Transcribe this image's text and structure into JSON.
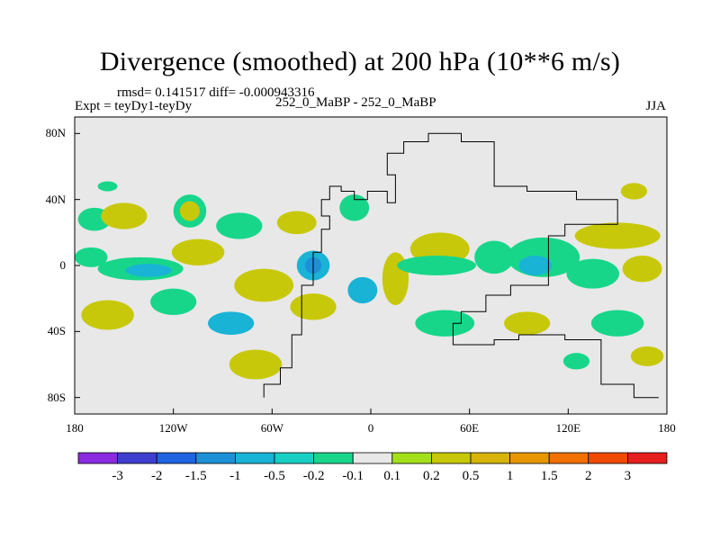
{
  "chart_data": {
    "type": "heatmap",
    "title": "Divergence (smoothed) at 200 hPa (10**6 m/s)",
    "stats": "rmsd= 0.141517 diff= -0.000943316",
    "left_label": "Expt = teyDy1-teyDy",
    "center_label": "252_0_MaBP - 252_0_MaBP",
    "right_label": "JJA",
    "x_range": [
      -180,
      180
    ],
    "y_range": [
      -90,
      90
    ],
    "x_ticks": [
      {
        "value": -180,
        "label": "180"
      },
      {
        "value": -120,
        "label": "120W"
      },
      {
        "value": -60,
        "label": "60W"
      },
      {
        "value": 0,
        "label": "0"
      },
      {
        "value": 60,
        "label": "60E"
      },
      {
        "value": 120,
        "label": "120E"
      },
      {
        "value": 180,
        "label": "180"
      }
    ],
    "y_ticks": [
      {
        "value": 80,
        "label": "80N"
      },
      {
        "value": 40,
        "label": "40N"
      },
      {
        "value": 0,
        "label": "0"
      },
      {
        "value": -40,
        "label": "40S"
      },
      {
        "value": -80,
        "label": "80S"
      }
    ],
    "colorbar": {
      "colors": [
        "#8a2be2",
        "#3f3fcf",
        "#1f63e0",
        "#1e90d8",
        "#19b3d6",
        "#17cfc3",
        "#17d68a",
        "#e8e8e8",
        "#a3e01a",
        "#c8c80a",
        "#d6b40a",
        "#e79600",
        "#f07000",
        "#ef4a00",
        "#e51e1e"
      ],
      "labels": [
        "-3",
        "-2",
        "-1.5",
        "-1",
        "-0.5",
        "-0.2",
        "-0.1",
        "0.1",
        "0.2",
        "0.5",
        "1",
        "1.5",
        "2",
        "3"
      ]
    },
    "blobs": [
      {
        "lon": -168,
        "lat": 28,
        "rx": 10,
        "ry": 7,
        "color": "#17d68a"
      },
      {
        "lon": -150,
        "lat": 30,
        "rx": 14,
        "ry": 8,
        "color": "#c8c80a"
      },
      {
        "lon": -110,
        "lat": 33,
        "rx": 10,
        "ry": 10,
        "color": "#17d68a"
      },
      {
        "lon": -110,
        "lat": 33,
        "rx": 6,
        "ry": 6,
        "color": "#c8c80a"
      },
      {
        "lon": -80,
        "lat": 24,
        "rx": 14,
        "ry": 8,
        "color": "#17d68a"
      },
      {
        "lon": -45,
        "lat": 26,
        "rx": 12,
        "ry": 7,
        "color": "#c8c80a"
      },
      {
        "lon": -10,
        "lat": 35,
        "rx": 9,
        "ry": 8,
        "color": "#17d68a"
      },
      {
        "lon": -170,
        "lat": 5,
        "rx": 10,
        "ry": 6,
        "color": "#17d68a"
      },
      {
        "lon": -140,
        "lat": -2,
        "rx": 26,
        "ry": 7,
        "color": "#17d68a"
      },
      {
        "lon": -135,
        "lat": -3,
        "rx": 14,
        "ry": 4,
        "color": "#19b3d6"
      },
      {
        "lon": -105,
        "lat": 8,
        "rx": 16,
        "ry": 8,
        "color": "#c8c80a"
      },
      {
        "lon": -65,
        "lat": -12,
        "rx": 18,
        "ry": 10,
        "color": "#c8c80a"
      },
      {
        "lon": -35,
        "lat": 0,
        "rx": 10,
        "ry": 9,
        "color": "#19b3d6"
      },
      {
        "lon": -35,
        "lat": 0,
        "rx": 5,
        "ry": 5,
        "color": "#1e90d8"
      },
      {
        "lon": -5,
        "lat": -15,
        "rx": 9,
        "ry": 8,
        "color": "#19b3d6"
      },
      {
        "lon": 15,
        "lat": -8,
        "rx": 8,
        "ry": 16,
        "color": "#c8c80a"
      },
      {
        "lon": 42,
        "lat": 10,
        "rx": 18,
        "ry": 10,
        "color": "#c8c80a"
      },
      {
        "lon": 40,
        "lat": 0,
        "rx": 24,
        "ry": 6,
        "color": "#17d68a"
      },
      {
        "lon": 75,
        "lat": 5,
        "rx": 12,
        "ry": 10,
        "color": "#17d68a"
      },
      {
        "lon": 105,
        "lat": 5,
        "rx": 22,
        "ry": 12,
        "color": "#17d68a"
      },
      {
        "lon": 100,
        "lat": 0,
        "rx": 10,
        "ry": 6,
        "color": "#19b3d6"
      },
      {
        "lon": 150,
        "lat": 18,
        "rx": 26,
        "ry": 8,
        "color": "#c8c80a"
      },
      {
        "lon": 135,
        "lat": -5,
        "rx": 16,
        "ry": 9,
        "color": "#17d68a"
      },
      {
        "lon": 165,
        "lat": -2,
        "rx": 12,
        "ry": 8,
        "color": "#c8c80a"
      },
      {
        "lon": -160,
        "lat": -30,
        "rx": 16,
        "ry": 9,
        "color": "#c8c80a"
      },
      {
        "lon": -120,
        "lat": -22,
        "rx": 14,
        "ry": 8,
        "color": "#17d68a"
      },
      {
        "lon": -85,
        "lat": -35,
        "rx": 14,
        "ry": 7,
        "color": "#19b3d6"
      },
      {
        "lon": -70,
        "lat": -60,
        "rx": 16,
        "ry": 9,
        "color": "#c8c80a"
      },
      {
        "lon": -35,
        "lat": -25,
        "rx": 14,
        "ry": 8,
        "color": "#c8c80a"
      },
      {
        "lon": 45,
        "lat": -35,
        "rx": 18,
        "ry": 8,
        "color": "#17d68a"
      },
      {
        "lon": 95,
        "lat": -35,
        "rx": 14,
        "ry": 7,
        "color": "#c8c80a"
      },
      {
        "lon": 150,
        "lat": -35,
        "rx": 16,
        "ry": 8,
        "color": "#17d68a"
      },
      {
        "lon": 125,
        "lat": -58,
        "rx": 8,
        "ry": 5,
        "color": "#17d68a"
      },
      {
        "lon": 168,
        "lat": -55,
        "rx": 10,
        "ry": 6,
        "color": "#c8c80a"
      },
      {
        "lon": 160,
        "lat": 45,
        "rx": 8,
        "ry": 5,
        "color": "#c8c80a"
      },
      {
        "lon": -160,
        "lat": 48,
        "rx": 6,
        "ry": 3,
        "color": "#17d68a"
      }
    ],
    "outline_lonlat": [
      [
        -65,
        -80
      ],
      [
        -65,
        -72
      ],
      [
        -55,
        -72
      ],
      [
        -55,
        -62
      ],
      [
        -48,
        -62
      ],
      [
        -48,
        -42
      ],
      [
        -42,
        -42
      ],
      [
        -42,
        -12
      ],
      [
        -35,
        -12
      ],
      [
        -35,
        8
      ],
      [
        -30,
        8
      ],
      [
        -30,
        22
      ],
      [
        -25,
        22
      ],
      [
        -25,
        30
      ],
      [
        -30,
        30
      ],
      [
        -30,
        40
      ],
      [
        -25,
        40
      ],
      [
        -25,
        48
      ],
      [
        -18,
        48
      ],
      [
        -18,
        45
      ],
      [
        -10,
        45
      ],
      [
        -10,
        40
      ],
      [
        -2,
        40
      ],
      [
        -2,
        45
      ],
      [
        10,
        45
      ],
      [
        10,
        38
      ],
      [
        15,
        38
      ],
      [
        15,
        55
      ],
      [
        10,
        55
      ],
      [
        10,
        68
      ],
      [
        20,
        68
      ],
      [
        20,
        75
      ],
      [
        35,
        75
      ],
      [
        35,
        80
      ],
      [
        55,
        80
      ],
      [
        55,
        75
      ],
      [
        75,
        75
      ],
      [
        75,
        48
      ],
      [
        95,
        48
      ],
      [
        95,
        45
      ],
      [
        125,
        45
      ],
      [
        125,
        40
      ],
      [
        150,
        40
      ],
      [
        150,
        25
      ],
      [
        118,
        25
      ],
      [
        118,
        18
      ],
      [
        108,
        18
      ],
      [
        108,
        -12
      ],
      [
        85,
        -12
      ],
      [
        85,
        -18
      ],
      [
        70,
        -18
      ],
      [
        70,
        -28
      ],
      [
        55,
        -28
      ],
      [
        55,
        -35
      ],
      [
        50,
        -35
      ],
      [
        50,
        -48
      ],
      [
        75,
        -48
      ],
      [
        75,
        -45
      ],
      [
        90,
        -45
      ],
      [
        90,
        -42
      ],
      [
        118,
        -42
      ],
      [
        118,
        -45
      ],
      [
        140,
        -45
      ],
      [
        140,
        -72
      ],
      [
        160,
        -72
      ],
      [
        160,
        -80
      ],
      [
        175,
        -80
      ]
    ]
  }
}
